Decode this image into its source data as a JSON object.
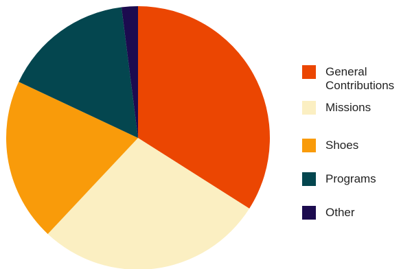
{
  "chart_data": {
    "type": "pie",
    "title": "",
    "categories": [
      "General Contributions",
      "Missions",
      "Shoes",
      "Programs",
      "Other"
    ],
    "values": [
      34,
      28,
      20,
      16,
      2
    ],
    "colors": [
      "#EB4602",
      "#FBEFC2",
      "#F99B0A",
      "#04464F",
      "#1C0B4F"
    ],
    "legend_position": "right",
    "start_angle": "top",
    "direction": "clockwise"
  },
  "legend": {
    "items": [
      {
        "label": "General\nContributions",
        "color": "#EB4602"
      },
      {
        "label": "Missions",
        "color": "#FBEFC2"
      },
      {
        "label": "Shoes",
        "color": "#F99B0A"
      },
      {
        "label": "Programs",
        "color": "#04464F"
      },
      {
        "label": "Other",
        "color": "#1C0B4F"
      }
    ]
  }
}
